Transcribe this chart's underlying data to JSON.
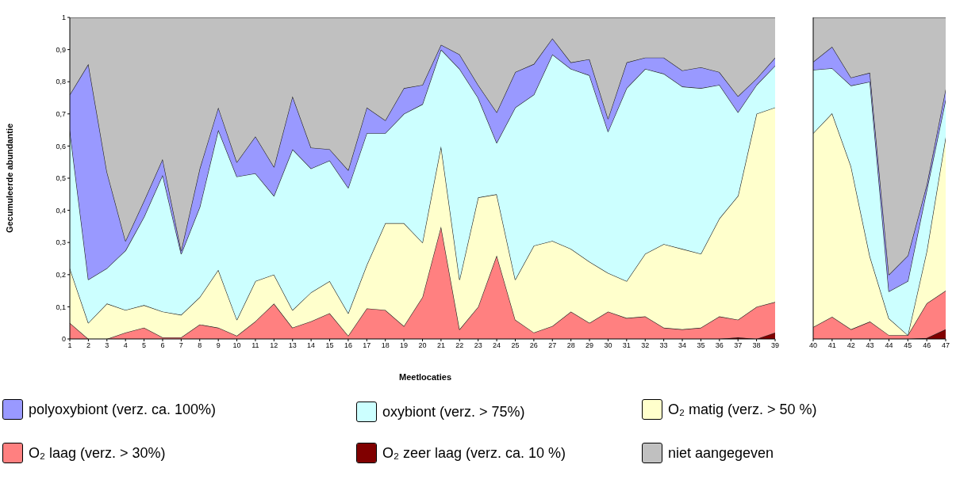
{
  "chart_data": [
    {
      "type": "area",
      "stacked": true,
      "ylabel": "Gecumuleerde abundantie",
      "xlabel": "Meetlocaties",
      "legend": "bottom",
      "x": [
        1,
        2,
        3,
        4,
        5,
        6,
        7,
        8,
        9,
        10,
        11,
        12,
        13,
        14,
        15,
        16,
        17,
        18,
        19,
        20,
        21,
        22,
        23,
        24,
        25,
        26,
        27,
        28,
        29,
        30,
        31,
        32,
        33,
        34,
        35,
        36,
        37,
        38,
        39
      ],
      "xlim": [
        1,
        39
      ],
      "xticks": [
        1,
        2,
        3,
        4,
        5,
        6,
        7,
        8,
        9,
        10,
        11,
        12,
        13,
        14,
        15,
        16,
        17,
        18,
        19,
        20,
        21,
        22,
        23,
        24,
        25,
        26,
        27,
        28,
        29,
        30,
        31,
        32,
        33,
        34,
        35,
        36,
        37,
        38,
        39
      ],
      "ylim": [
        0,
        1
      ],
      "yticks": [
        0,
        {
          "value": 0.1,
          "label": "0,1"
        },
        {
          "value": 0.2,
          "label": "0,2"
        },
        {
          "value": 0.3,
          "label": "0,3"
        },
        {
          "value": 0.4,
          "label": "0,4"
        },
        {
          "value": 0.5,
          "label": "0,5"
        },
        {
          "value": 0.6,
          "label": "0,6"
        },
        {
          "value": 0.7,
          "label": "0,7"
        },
        {
          "value": 0.8,
          "label": "0,8"
        },
        {
          "value": 0.9,
          "label": "0,9"
        },
        1
      ],
      "series": [
        {
          "name": "O₂ zeer laag (verz. ca. 10 %)",
          "color": "#800000",
          "values": [
            0,
            0,
            0,
            0,
            0,
            0,
            0,
            0,
            0,
            0,
            0,
            0,
            0,
            0,
            0,
            0,
            0,
            0,
            0,
            0,
            0,
            0,
            0,
            0,
            0,
            0,
            0,
            0,
            0,
            0,
            0,
            0,
            0,
            0,
            0,
            0,
            0.005,
            0,
            0.02
          ]
        },
        {
          "name": "O₂ laag (verz. > 30%)",
          "color": "#ff8080",
          "values": [
            0.05,
            0,
            0,
            0.02,
            0.035,
            0.005,
            0.005,
            0.045,
            0.035,
            0.01,
            0.055,
            0.11,
            0.035,
            0.055,
            0.08,
            0.01,
            0.095,
            0.09,
            0.04,
            0.13,
            0.35,
            0.03,
            0.1,
            0.26,
            0.06,
            0.02,
            0.04,
            0.085,
            0.05,
            0.085,
            0.065,
            0.07,
            0.035,
            0.03,
            0.035,
            0.07,
            0.055,
            0.1,
            0.095
          ]
        },
        {
          "name": "O₂ matig (verz. > 50 %)",
          "color": "#ffffcc",
          "values": [
            0.17,
            0.05,
            0.11,
            0.07,
            0.07,
            0.08,
            0.07,
            0.085,
            0.18,
            0.05,
            0.125,
            0.09,
            0.055,
            0.09,
            0.1,
            0.07,
            0.135,
            0.27,
            0.32,
            0.17,
            0.25,
            0.155,
            0.34,
            0.19,
            0.125,
            0.27,
            0.265,
            0.195,
            0.19,
            0.12,
            0.115,
            0.195,
            0.26,
            0.25,
            0.23,
            0.305,
            0.385,
            0.6,
            0.605
          ]
        },
        {
          "name": "oxybiont (verz. > 75%)",
          "color": "#ccffff",
          "values": [
            0.43,
            0.135,
            0.11,
            0.185,
            0.275,
            0.425,
            0.19,
            0.28,
            0.435,
            0.445,
            0.335,
            0.245,
            0.5,
            0.385,
            0.375,
            0.39,
            0.41,
            0.28,
            0.34,
            0.43,
            0.3,
            0.655,
            0.31,
            0.16,
            0.535,
            0.47,
            0.58,
            0.56,
            0.58,
            0.44,
            0.6,
            0.575,
            0.53,
            0.505,
            0.515,
            0.415,
            0.26,
            0.09,
            0.13
          ]
        },
        {
          "name": "polyoxybiont (verz. ca. 100%)",
          "color": "#9999ff",
          "values": [
            0.11,
            0.67,
            0.3,
            0.03,
            0.05,
            0.05,
            0.01,
            0.12,
            0.07,
            0.045,
            0.115,
            0.09,
            0.165,
            0.065,
            0.035,
            0.055,
            0.08,
            0.04,
            0.08,
            0.06,
            0.015,
            0.045,
            0.04,
            0.095,
            0.11,
            0.095,
            0.05,
            0.02,
            0.05,
            0.04,
            0.08,
            0.035,
            0.05,
            0.05,
            0.065,
            0.04,
            0.05,
            0.02,
            0.025
          ]
        },
        {
          "name": "niet aangegeven",
          "color": "#c0c0c0",
          "values": [
            0.24,
            0.145,
            0.48,
            0.695,
            0.57,
            0.44,
            0.725,
            0.47,
            0.28,
            0.45,
            0.37,
            0.465,
            0.245,
            0.405,
            0.41,
            0.475,
            0.28,
            0.32,
            0.22,
            0.21,
            0.085,
            0.115,
            0.21,
            0.295,
            0.17,
            0.145,
            0.065,
            0.14,
            0.13,
            0.315,
            0.14,
            0.125,
            0.125,
            0.165,
            0.155,
            0.17,
            0.245,
            0.19,
            0.125
          ]
        }
      ]
    },
    {
      "type": "area",
      "stacked": true,
      "tick_labels": "x",
      "x": [
        40,
        41,
        42,
        43,
        44,
        45,
        46,
        47
      ],
      "xlim": [
        40,
        47
      ],
      "xticks": [
        40,
        41,
        42,
        43,
        44,
        45,
        46,
        47
      ],
      "ylim": [
        0,
        1
      ],
      "series": [
        {
          "color": "#800000",
          "values": [
            0,
            0,
            0,
            0,
            0,
            0,
            0.003,
            0.03
          ]
        },
        {
          "color": "#ff8080",
          "values": [
            0.037,
            0.069,
            0.03,
            0.054,
            0.012,
            0.012,
            0.108,
            0.12
          ]
        },
        {
          "color": "#ffffcc",
          "values": [
            0.603,
            0.633,
            0.507,
            0.202,
            0.052,
            0,
            0.162,
            0.478
          ]
        },
        {
          "color": "#ccffff",
          "values": [
            0.197,
            0.14,
            0.251,
            0.544,
            0.084,
            0.168,
            0.19,
            0.117
          ]
        },
        {
          "color": "#9999ff",
          "values": [
            0.025,
            0.067,
            0.025,
            0.028,
            0.052,
            0.079,
            0.017,
            0.033
          ]
        },
        {
          "color": "#c0c0c0",
          "values": [
            0.138,
            0.091,
            0.187,
            0.172,
            0.8,
            0.741,
            0.52,
            0.222
          ]
        }
      ]
    }
  ]
}
